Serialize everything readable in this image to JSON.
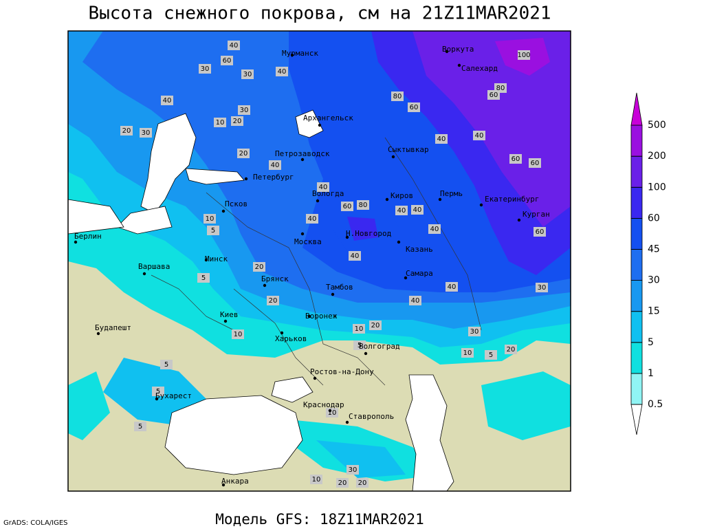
{
  "title": "Высота снежного покрова, см на 21Z11MAR2021",
  "model": "Модель GFS: 18Z11MAR2021",
  "credit": "GrADS: COLA/IGES",
  "legend": {
    "levels": [
      0.5,
      1,
      5,
      15,
      30,
      45,
      60,
      100,
      200,
      500
    ],
    "colors": [
      "#ffffff",
      "#90f4f4",
      "#10e0e0",
      "#10c0f0",
      "#1898f0",
      "#1e6ef0",
      "#1450f0",
      "#3a28f0",
      "#6a20e8",
      "#9a10e0",
      "#c800d8"
    ]
  },
  "land_color": "#dcdcb4",
  "cities": [
    "Мурманск",
    "Воркута",
    "Салехард",
    "Архангельск",
    "Петрозаводск",
    "Сыктывкар",
    "Петербург",
    "Вологда",
    "Киров",
    "Пермь",
    "Екатеринбург",
    "Псков",
    "Курган",
    "Н.Новгород",
    "Казань",
    "Берлин",
    "Москва",
    "Минск",
    "Варшава",
    "Самара",
    "Брянск",
    "Тамбов",
    "Воронеж",
    "Киев",
    "Будапешт",
    "Харьков",
    "Волгоград",
    "Ростов-на-Дону",
    "Бухарест",
    "Краснодар",
    "Ставрополь",
    "Анкара"
  ],
  "contour_labels": [
    40,
    30,
    60,
    40,
    30,
    40,
    60,
    80,
    100,
    80,
    60,
    40,
    20,
    30,
    40,
    10,
    20,
    30,
    20,
    40,
    60,
    60,
    40,
    40,
    60,
    80,
    40,
    40,
    40,
    60,
    20,
    10,
    5,
    5,
    20,
    40,
    40,
    30,
    30,
    20,
    10,
    10,
    5,
    20,
    10,
    5,
    5,
    5,
    5,
    10,
    20,
    20,
    30,
    10,
    40
  ]
}
